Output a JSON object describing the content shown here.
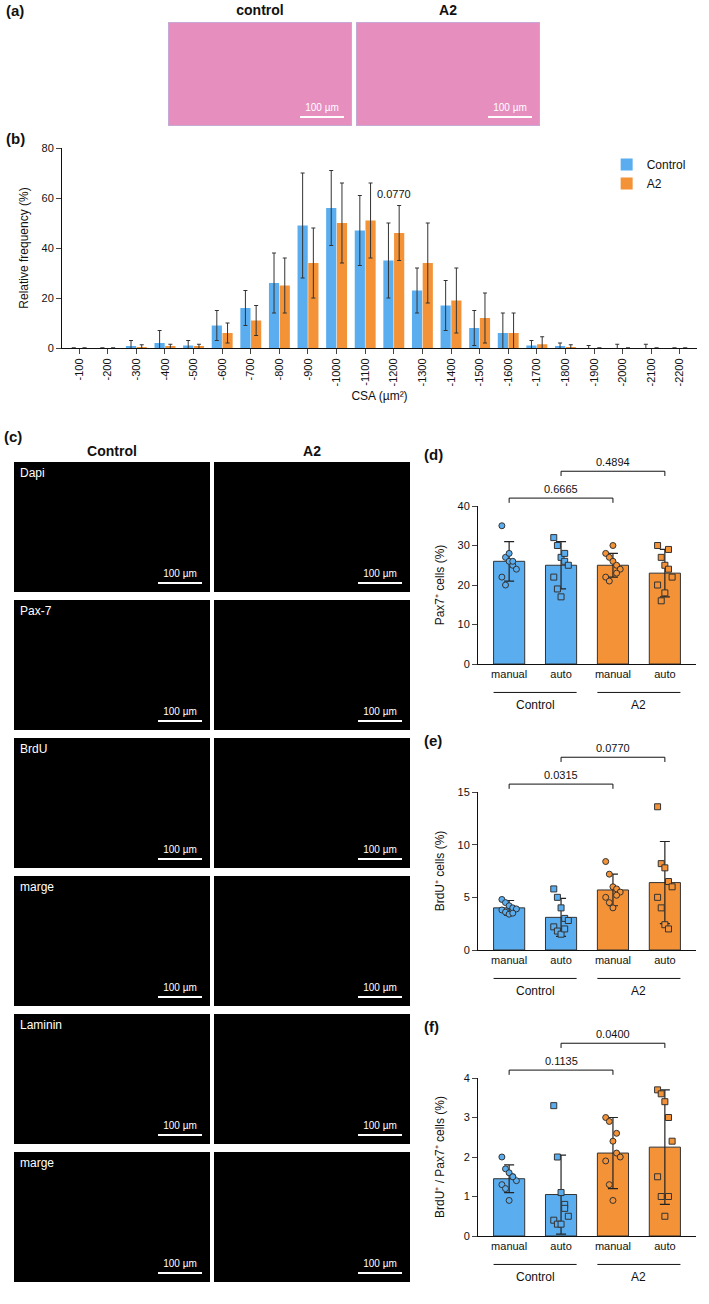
{
  "chart_data": [
    {
      "panel": "(b)",
      "type": "bar",
      "y_label": "Relative frequency (%)",
      "x_label": "CSA (µm²)",
      "categories": [
        "-100",
        "-200",
        "-300",
        "-400",
        "-500",
        "-600",
        "-700",
        "-800",
        "-900",
        "-1000",
        "-1100",
        "-1200",
        "-1300",
        "-1400",
        "-1500",
        "-1600",
        "-1700",
        "-1800",
        "-1900",
        "-2000",
        "-2100",
        "-2200"
      ],
      "series": [
        {
          "name": "Control",
          "color": "#5aaef0",
          "values": [
            0,
            0,
            0.5,
            2,
            1,
            9,
            16,
            26,
            49,
            56,
            47,
            35,
            23,
            17,
            8,
            6,
            1,
            0.5,
            0,
            0,
            0,
            0
          ],
          "errors": [
            0,
            0,
            2.5,
            5,
            2,
            6,
            7,
            12,
            21,
            15,
            14,
            15,
            9,
            10,
            7,
            8,
            2,
            1.5,
            1,
            1.5,
            1.5,
            0
          ]
        },
        {
          "name": "A2",
          "color": "#f39237",
          "values": [
            0,
            0,
            0.3,
            0.5,
            0.5,
            6,
            11,
            25,
            34,
            50,
            51,
            46,
            34,
            19,
            12,
            6,
            1.5,
            0.3,
            0,
            0,
            0,
            0
          ],
          "errors": [
            0,
            0,
            1,
            1,
            1,
            4,
            6,
            11,
            14,
            16,
            15,
            11,
            16,
            13,
            10,
            8,
            3,
            1,
            0,
            0,
            0,
            0
          ]
        }
      ],
      "annotations": [
        {
          "text": "0.0770",
          "category": "-1200"
        }
      ],
      "ylim": [
        0,
        80
      ],
      "yticks": [
        0,
        20,
        40,
        60,
        80
      ],
      "legend": "upper right",
      "grid": false
    },
    {
      "panel": "(d)",
      "type": "bar",
      "y_label": "Pax7⁺ cells (%)",
      "categories": [
        "manual",
        "auto",
        "manual",
        "auto"
      ],
      "groups": [
        {
          "label": "Control",
          "span": [
            0,
            1
          ]
        },
        {
          "label": "A2",
          "span": [
            2,
            3
          ]
        }
      ],
      "values": [
        26,
        25,
        25,
        23
      ],
      "errors": [
        5,
        6,
        3,
        6
      ],
      "points": [
        [
          35,
          27,
          26,
          25,
          24,
          22,
          20,
          28,
          26
        ],
        [
          32,
          30,
          27,
          26,
          25,
          22,
          19,
          17,
          28
        ],
        [
          28,
          27,
          26,
          25,
          24,
          22,
          21,
          30,
          23
        ],
        [
          30,
          27,
          25,
          24,
          22,
          20,
          16,
          18,
          29
        ]
      ],
      "colors": [
        "#5aaef0",
        "#5aaef0",
        "#f39237",
        "#f39237"
      ],
      "marker": [
        "circle",
        "square",
        "circle",
        "square"
      ],
      "comparisons": [
        {
          "between": [
            0,
            2
          ],
          "label": "0.6665"
        },
        {
          "between": [
            1,
            3
          ],
          "label": "0.4894"
        }
      ],
      "ylim": [
        0,
        40
      ],
      "yticks": [
        0,
        10,
        20,
        30,
        40
      ],
      "grid": false
    },
    {
      "panel": "(e)",
      "type": "bar",
      "y_label": "BrdU⁺ cells (%)",
      "categories": [
        "manual",
        "auto",
        "manual",
        "auto"
      ],
      "groups": [
        {
          "label": "Control",
          "span": [
            0,
            1
          ]
        },
        {
          "label": "A2",
          "span": [
            2,
            3
          ]
        }
      ],
      "values": [
        4.0,
        3.1,
        5.7,
        6.4
      ],
      "errors": [
        0.7,
        1.8,
        1.5,
        3.9
      ],
      "points": [
        [
          4.8,
          4.5,
          4.2,
          4.0,
          3.9,
          3.8,
          3.6,
          3.4,
          3.5
        ],
        [
          5.8,
          5.0,
          4.0,
          3.0,
          2.8,
          2.2,
          1.8,
          1.5,
          2.0
        ],
        [
          8.4,
          7.2,
          6.0,
          5.8,
          5.5,
          5.0,
          4.5,
          4.0,
          5.2
        ],
        [
          13.6,
          8.2,
          7.8,
          6.5,
          6.0,
          5.0,
          4.0,
          2.4,
          2.0
        ]
      ],
      "colors": [
        "#5aaef0",
        "#5aaef0",
        "#f39237",
        "#f39237"
      ],
      "marker": [
        "circle",
        "square",
        "circle",
        "square"
      ],
      "comparisons": [
        {
          "between": [
            0,
            2
          ],
          "label": "0.0315"
        },
        {
          "between": [
            1,
            3
          ],
          "label": "0.0770"
        }
      ],
      "ylim": [
        0,
        15
      ],
      "yticks": [
        0,
        5,
        10,
        15
      ],
      "grid": false
    },
    {
      "panel": "(f)",
      "type": "bar",
      "y_label": "BrdU⁺ / Pax7⁺ cells (%)",
      "categories": [
        "manual",
        "auto",
        "manual",
        "auto"
      ],
      "groups": [
        {
          "label": "Control",
          "span": [
            0,
            1
          ]
        },
        {
          "label": "A2",
          "span": [
            2,
            3
          ]
        }
      ],
      "values": [
        1.45,
        1.05,
        2.1,
        2.25
      ],
      "errors": [
        0.35,
        1.0,
        0.9,
        1.45
      ],
      "points": [
        [
          2.0,
          1.7,
          1.6,
          1.5,
          1.4,
          1.3,
          1.2,
          0.9,
          1.5
        ],
        [
          3.3,
          2.0,
          1.1,
          0.8,
          0.5,
          0.4,
          0.3,
          0.3,
          0.7
        ],
        [
          3.0,
          2.9,
          2.4,
          2.1,
          2.0,
          1.9,
          1.3,
          0.9,
          2.6
        ],
        [
          3.7,
          3.6,
          3.4,
          3.0,
          2.4,
          1.5,
          1.0,
          0.5,
          1.0
        ]
      ],
      "colors": [
        "#5aaef0",
        "#5aaef0",
        "#f39237",
        "#f39237"
      ],
      "marker": [
        "circle",
        "square",
        "circle",
        "square"
      ],
      "comparisons": [
        {
          "between": [
            0,
            2
          ],
          "label": "0.1135"
        },
        {
          "between": [
            1,
            3
          ],
          "label": "0.0400"
        }
      ],
      "ylim": [
        0,
        4
      ],
      "yticks": [
        0,
        1,
        2,
        3,
        4
      ],
      "grid": false
    }
  ],
  "micrographs": [
    {
      "panel": "(a)",
      "columns": [
        "control",
        "A2"
      ],
      "scale_bar": "100 µm"
    },
    {
      "panel": "(c)",
      "columns": [
        "Control",
        "A2"
      ],
      "rows": [
        "Dapi",
        "Pax-7",
        "BrdU",
        "marge",
        "Laminin",
        "marge"
      ],
      "scale_bar": "100 µm"
    }
  ]
}
